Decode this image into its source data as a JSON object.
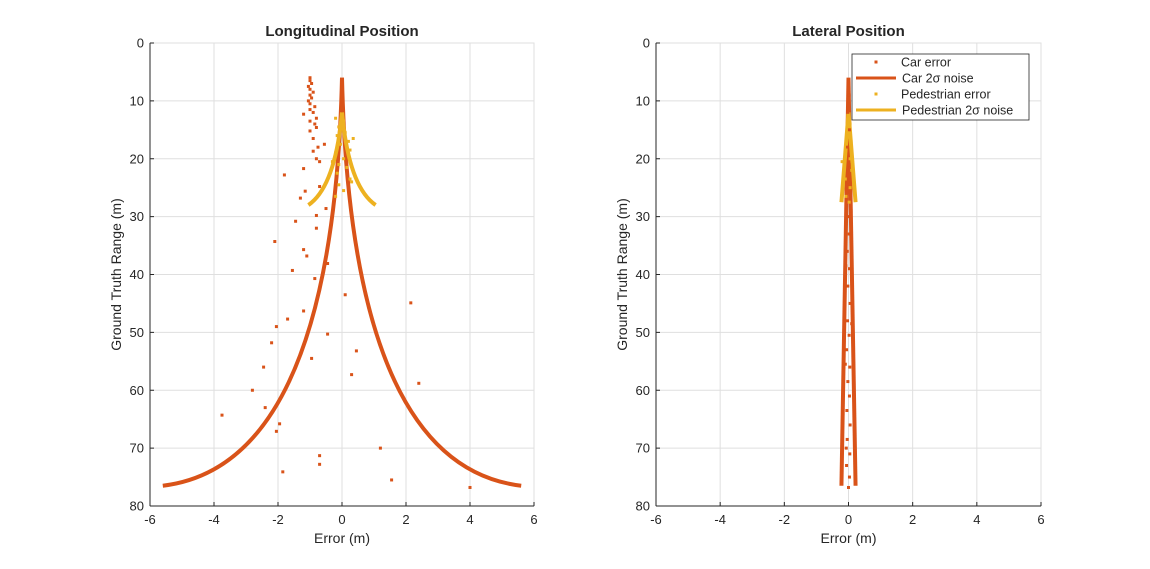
{
  "colors": {
    "car": "#D95319",
    "pedestrian": "#EDB120",
    "grid": "#dfdfdf",
    "axis": "#262626"
  },
  "chart_data": [
    {
      "id": "longitudinal",
      "type": "scatter",
      "title": "Longitudinal Position",
      "xlabel": "Error (m)",
      "ylabel": "Ground Truth Range (m)",
      "xlim": [
        -6,
        6
      ],
      "ylim": [
        0,
        80
      ],
      "y_reversed": true,
      "grid": true,
      "xticks": [
        "-6",
        "-4",
        "-2",
        "0",
        "2",
        "4",
        "6"
      ],
      "yticks": [
        "0",
        "10",
        "20",
        "30",
        "40",
        "50",
        "60",
        "70",
        "80"
      ],
      "series": [
        {
          "name": "Car error",
          "kind": "points",
          "color": "#D95319",
          "points": [
            [
              -1.0,
              6.0
            ],
            [
              -1.0,
              6.5
            ],
            [
              -0.95,
              7.0
            ],
            [
              -1.05,
              7.5
            ],
            [
              -1.0,
              8.0
            ],
            [
              -0.9,
              8.5
            ],
            [
              -1.0,
              9.0
            ],
            [
              -0.95,
              9.5
            ],
            [
              -1.05,
              10.0
            ],
            [
              -1.0,
              10.5
            ],
            [
              -0.85,
              11.0
            ],
            [
              -1.0,
              11.5
            ],
            [
              -0.9,
              12.0
            ],
            [
              -1.2,
              12.3
            ],
            [
              -0.8,
              13.0
            ],
            [
              -1.0,
              13.5
            ],
            [
              -0.85,
              14.0
            ],
            [
              -0.8,
              14.6
            ],
            [
              -1.0,
              15.2
            ],
            [
              -0.9,
              16.5
            ],
            [
              -0.75,
              18.0
            ],
            [
              -0.55,
              17.5
            ],
            [
              -0.9,
              18.7
            ],
            [
              -0.8,
              20.0
            ],
            [
              -0.7,
              20.5
            ],
            [
              -1.2,
              21.7
            ],
            [
              -1.8,
              22.8
            ],
            [
              -0.7,
              24.8
            ],
            [
              -1.15,
              25.6
            ],
            [
              -1.3,
              26.8
            ],
            [
              -0.5,
              28.6
            ],
            [
              -0.8,
              29.8
            ],
            [
              -1.45,
              30.8
            ],
            [
              -0.8,
              32.0
            ],
            [
              -2.1,
              34.3
            ],
            [
              -1.2,
              35.7
            ],
            [
              -1.1,
              36.8
            ],
            [
              -0.45,
              38.1
            ],
            [
              -1.55,
              39.3
            ],
            [
              -0.85,
              40.7
            ],
            [
              0.1,
              43.5
            ],
            [
              2.15,
              44.9
            ],
            [
              -1.2,
              46.3
            ],
            [
              -1.7,
              47.7
            ],
            [
              -2.05,
              49.0
            ],
            [
              -0.45,
              50.3
            ],
            [
              -2.2,
              51.8
            ],
            [
              0.45,
              53.2
            ],
            [
              -0.95,
              54.5
            ],
            [
              -2.45,
              56.0
            ],
            [
              0.3,
              57.3
            ],
            [
              2.4,
              58.8
            ],
            [
              -2.8,
              60.0
            ],
            [
              -3.75,
              64.3
            ],
            [
              -2.4,
              63.0
            ],
            [
              -1.95,
              65.8
            ],
            [
              -2.05,
              67.1
            ],
            [
              1.2,
              70.0
            ],
            [
              -0.7,
              71.3
            ],
            [
              -0.7,
              72.8
            ],
            [
              -1.85,
              74.1
            ],
            [
              1.55,
              75.5
            ],
            [
              4.0,
              76.8
            ]
          ]
        },
        {
          "name": "Car 2σ noise",
          "kind": "envelope",
          "color": "#D95319",
          "vertex": [
            0,
            6
          ],
          "endpoints": [
            [
              -5.6,
              76.5
            ],
            [
              5.6,
              76.5
            ]
          ],
          "curvature": 0.9
        },
        {
          "name": "Pedestrian error",
          "kind": "points",
          "color": "#EDB120",
          "points": [
            [
              -0.2,
              13.0
            ],
            [
              0.05,
              13.5
            ],
            [
              -0.1,
              14.5
            ],
            [
              0.1,
              15.5
            ],
            [
              -0.15,
              16.0
            ],
            [
              0.2,
              17.0
            ],
            [
              -0.05,
              17.5
            ],
            [
              0.25,
              18.5
            ],
            [
              -0.2,
              19.0
            ],
            [
              0.05,
              20.0
            ],
            [
              -0.1,
              21.0
            ],
            [
              0.15,
              21.5
            ],
            [
              -0.15,
              22.5
            ],
            [
              0.25,
              23.5
            ],
            [
              -0.1,
              24.5
            ],
            [
              0.05,
              25.5
            ],
            [
              -0.2,
              26.5
            ],
            [
              0.35,
              16.5
            ],
            [
              -0.3,
              20.5
            ],
            [
              0.3,
              24.0
            ]
          ]
        },
        {
          "name": "Pedestrian 2σ noise",
          "kind": "envelope",
          "color": "#EDB120",
          "vertex": [
            0,
            12
          ],
          "endpoints": [
            [
              -1.05,
              28.0
            ],
            [
              1.05,
              28.0
            ]
          ],
          "curvature": 0.6
        }
      ]
    },
    {
      "id": "lateral",
      "type": "scatter",
      "title": "Lateral Position",
      "xlabel": "Error (m)",
      "ylabel": "Ground Truth Range (m)",
      "xlim": [
        -6,
        6
      ],
      "ylim": [
        0,
        80
      ],
      "y_reversed": true,
      "grid": true,
      "legend_position": "top-right",
      "xticks": [
        "-6",
        "-4",
        "-2",
        "0",
        "2",
        "4",
        "6"
      ],
      "yticks": [
        "0",
        "10",
        "20",
        "30",
        "40",
        "50",
        "60",
        "70",
        "80"
      ],
      "series": [
        {
          "name": "Car error",
          "kind": "points",
          "color": "#D95319",
          "points": [
            [
              0.0,
              6.5
            ],
            [
              0.02,
              9.0
            ],
            [
              -0.02,
              12.0
            ],
            [
              0.03,
              15.0
            ],
            [
              -0.03,
              18.0
            ],
            [
              0.02,
              21.0
            ],
            [
              -0.02,
              24.0
            ],
            [
              0.04,
              27.0
            ],
            [
              -0.03,
              30.0
            ],
            [
              0.02,
              33.0
            ],
            [
              -0.04,
              36.0
            ],
            [
              0.03,
              39.0
            ],
            [
              -0.02,
              42.0
            ],
            [
              0.05,
              45.0
            ],
            [
              -0.03,
              48.0
            ],
            [
              0.02,
              50.5
            ],
            [
              -0.06,
              53.0
            ],
            [
              0.04,
              56.0
            ],
            [
              -0.02,
              58.5
            ],
            [
              0.03,
              61.0
            ],
            [
              -0.05,
              63.5
            ],
            [
              0.05,
              66.0
            ],
            [
              -0.04,
              68.5
            ],
            [
              0.04,
              71.0
            ],
            [
              -0.06,
              73.0
            ],
            [
              0.03,
              75.0
            ],
            [
              0.0,
              76.8
            ],
            [
              -0.1,
              55.5
            ],
            [
              0.1,
              48.5
            ],
            [
              -0.08,
              38.5
            ],
            [
              0.08,
              29.0
            ],
            [
              -0.07,
              70.0
            ]
          ]
        },
        {
          "name": "Car 2σ noise",
          "kind": "envelope",
          "color": "#D95319",
          "vertex": [
            0,
            6
          ],
          "endpoints": [
            [
              -0.22,
              76.5
            ],
            [
              0.22,
              76.5
            ]
          ],
          "curvature": 0.0
        },
        {
          "name": "Pedestrian error",
          "kind": "points",
          "color": "#EDB120",
          "points": [
            [
              -0.02,
              12.5
            ],
            [
              0.05,
              14.0
            ],
            [
              -0.05,
              15.5
            ],
            [
              0.08,
              17.0
            ],
            [
              -0.08,
              18.5
            ],
            [
              0.05,
              20.0
            ],
            [
              -0.2,
              20.5
            ],
            [
              0.1,
              22.0
            ],
            [
              -0.1,
              23.5
            ],
            [
              0.05,
              25.0
            ],
            [
              -0.08,
              26.5
            ],
            [
              0.02,
              27.5
            ]
          ]
        },
        {
          "name": "Pedestrian 2σ noise",
          "kind": "envelope",
          "color": "#EDB120",
          "vertex": [
            0,
            12
          ],
          "endpoints": [
            [
              -0.22,
              27.5
            ],
            [
              0.22,
              27.5
            ]
          ],
          "curvature": 0.0
        }
      ],
      "legend": [
        {
          "label": "Car error",
          "kind": "point",
          "color": "#D95319"
        },
        {
          "label": "Car  2σ  noise",
          "kind": "line",
          "color": "#D95319"
        },
        {
          "label": "Pedestrian error",
          "kind": "point",
          "color": "#EDB120"
        },
        {
          "label": "Pedestrian  2σ  noise",
          "kind": "line",
          "color": "#EDB120"
        }
      ]
    }
  ]
}
